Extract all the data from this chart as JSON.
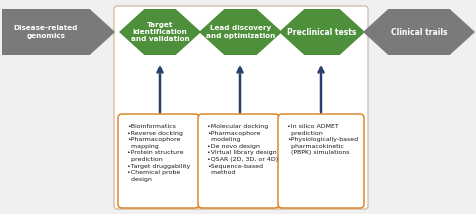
{
  "fig_width": 4.77,
  "fig_height": 2.14,
  "dpi": 100,
  "bg_color": "#f0f0f0",
  "outer_box_facecolor": "#ffffff",
  "outer_box_edgecolor": "#d0b090",
  "arrow_green": "#4e8f3c",
  "arrow_gray": "#7a7a7a",
  "arrow_blue_dark": "#2b3f6e",
  "orange_border": "#d97c1a",
  "text_color": "#1a1a1a",
  "gray_arrow_labels": [
    "Disease-related\ngenomics",
    "Clinical trails"
  ],
  "green_arrow_labels": [
    "Target\nidentification\nand validation",
    "Lead discovery\nand optimization",
    "Preclinical tests"
  ],
  "box1_text": "•Bioinformatics\n•Reverse docking\n•Pharmacophore\n  mapping\n•Protein structure\n  prediction\n•Target druggability\n•Chemical probe\n  design",
  "box2_text": "•Molecular docking\n•Pharmacophore\n  modeling\n•De novo design\n•Virtual library design\n•QSAR (2D, 3D, or 4D)\n•Sequence-based\n  method",
  "box3_text": "•In silico ADMET\n  prediction\n•Physiologically-based\n  pharmacokinetic\n  (PBPK) simulations",
  "xlim": [
    0,
    477
  ],
  "ylim": [
    0,
    214
  ]
}
